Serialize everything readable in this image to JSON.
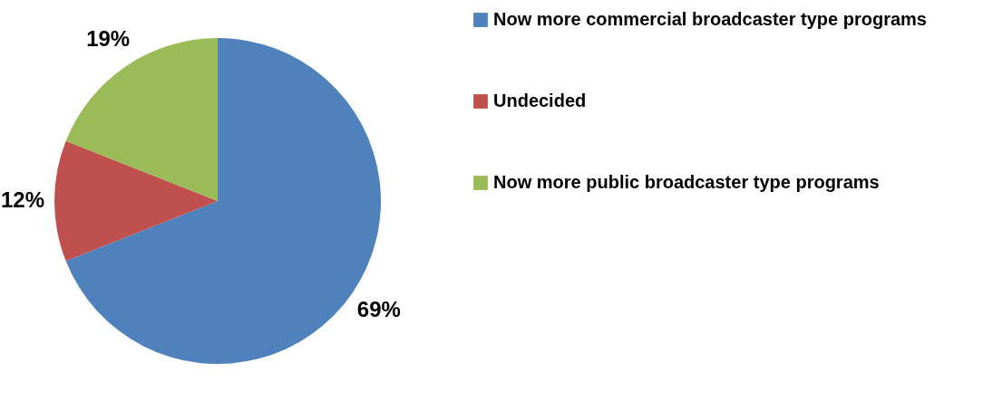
{
  "chart_data": {
    "type": "pie",
    "categories": [
      "Now more commercial broadcaster type programs",
      "Undecided",
      "Now more public broadcaster type programs"
    ],
    "values": [
      69,
      12,
      19
    ],
    "colors": [
      "#4f81bd",
      "#c0504d",
      "#9bbb59"
    ],
    "value_labels": [
      "69%",
      "12%",
      "19%"
    ],
    "legend": "right"
  }
}
